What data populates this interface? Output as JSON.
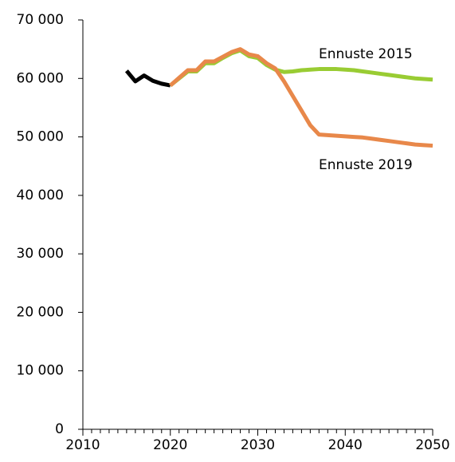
{
  "chart_data": {
    "type": "line",
    "x": [
      2015,
      2016,
      2017,
      2018,
      2019,
      2020,
      2021,
      2022,
      2023,
      2024,
      2025,
      2026,
      2027,
      2028,
      2029,
      2030,
      2031,
      2032,
      2033,
      2034,
      2035,
      2036,
      2037,
      2038,
      2039,
      2040,
      2041,
      2042,
      2043,
      2044,
      2045,
      2046,
      2047,
      2048,
      2049,
      2050
    ],
    "series": [
      {
        "color": "#000000",
        "values": [
          61300,
          59500,
          60500,
          59600,
          59100,
          58800,
          null,
          null,
          null,
          null,
          null,
          null,
          null,
          null,
          null,
          null,
          null,
          null,
          null,
          null,
          null,
          null,
          null,
          null,
          null,
          null,
          null,
          null,
          null,
          null,
          null,
          null,
          null,
          null,
          null,
          null
        ]
      },
      {
        "name": "Ennuste 2015",
        "color": "#99cc33",
        "values": [
          null,
          null,
          null,
          null,
          null,
          58800,
          60000,
          61200,
          61200,
          62600,
          62600,
          63500,
          64300,
          64800,
          63800,
          63500,
          62300,
          61500,
          61100,
          61200,
          61400,
          61500,
          61600,
          61600,
          61600,
          61500,
          61400,
          61200,
          61000,
          60800,
          60600,
          60400,
          60200,
          60000,
          59900,
          59800
        ]
      },
      {
        "name": "Ennuste 2019",
        "color": "#e8884a",
        "values": [
          null,
          null,
          null,
          null,
          null,
          58800,
          60100,
          61400,
          61400,
          62900,
          62900,
          63700,
          64500,
          65000,
          64100,
          63800,
          62600,
          61700,
          59500,
          57000,
          54500,
          52000,
          50400,
          50300,
          50200,
          50100,
          50000,
          49900,
          49700,
          49500,
          49300,
          49100,
          48900,
          48700,
          48600,
          48500
        ]
      }
    ],
    "xlim": [
      2010,
      2050
    ],
    "xticks": [
      2010,
      2020,
      2030,
      2040,
      2050
    ],
    "ylim": [
      0,
      70000
    ],
    "yticks": [
      0,
      {
        "value": 10000,
        "label": "10 000"
      },
      {
        "value": 20000,
        "label": "20 000"
      },
      {
        "value": 30000,
        "label": "30 000"
      },
      {
        "value": 40000,
        "label": "40 000"
      },
      {
        "value": 50000,
        "label": "50 000"
      },
      {
        "value": 60000,
        "label": "60 000"
      },
      {
        "value": 70000,
        "label": "70 000"
      }
    ]
  }
}
